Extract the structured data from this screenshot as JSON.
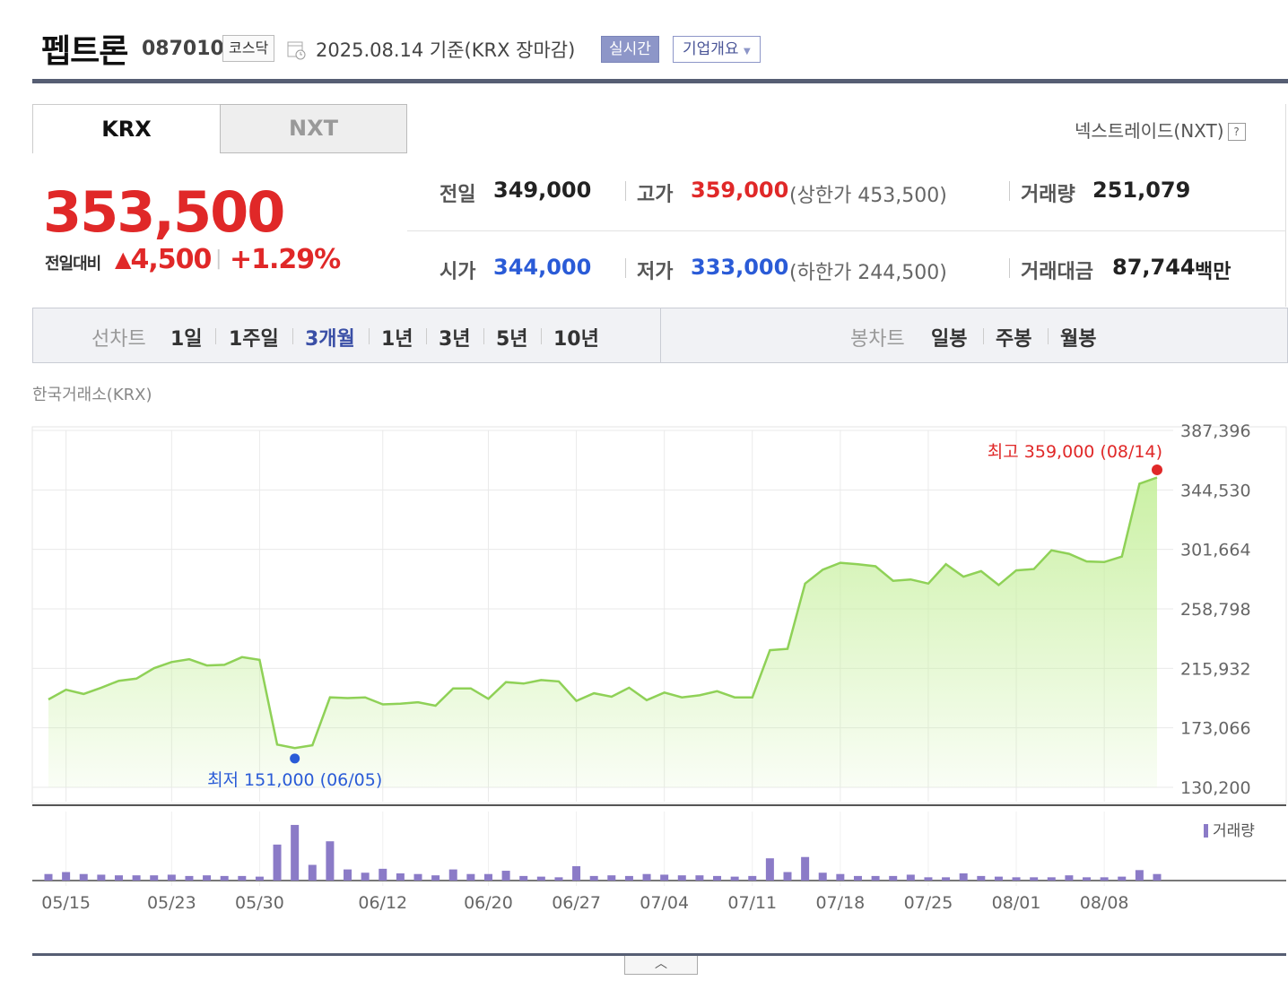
{
  "header": {
    "company_name": "펩트론",
    "stock_code": "087010",
    "market": "코스닥",
    "base_date": "2025.08.14 기준(KRX 장마감)",
    "realtime_button": "실시간",
    "overview_button": "기업개요"
  },
  "tabs": [
    "KRX",
    "NXT"
  ],
  "nxt_help_label": "넥스트레이드(NXT)",
  "quote": {
    "price": "353,500",
    "change_label": "전일대비",
    "change_symbol": "▲",
    "change_value": "4,500",
    "change_percent": "+1.29%",
    "prev_close_label": "전일",
    "prev_close": "349,000",
    "high_label": "고가",
    "high": "359,000",
    "upper_limit": "(상한가 453,500)",
    "volume_label": "거래량",
    "volume": "251,079",
    "open_label": "시가",
    "open": "344,000",
    "low_label": "저가",
    "low": "333,000",
    "lower_limit": "(하한가 244,500)",
    "amount_label": "거래대금",
    "amount": "87,744",
    "amount_unit": "백만"
  },
  "periods": {
    "line_label": "선차트",
    "line_items": [
      "1일",
      "1주일",
      "3개월",
      "1년",
      "3년",
      "5년",
      "10년"
    ],
    "active": "3개월",
    "candle_label": "봉차트",
    "candle_items": [
      "일봉",
      "주봉",
      "월봉"
    ]
  },
  "chart_data": {
    "type": "area",
    "exchange_label": "한국거래소(KRX)",
    "ylim": [
      130200,
      387396
    ],
    "ytick_labels": [
      "387,396",
      "344,530",
      "301,664",
      "258,798",
      "215,932",
      "173,066",
      "130,200"
    ],
    "xtick_labels": [
      "05/15",
      "05/23",
      "05/30",
      "06/12",
      "06/20",
      "06/27",
      "07/04",
      "07/11",
      "07/18",
      "07/25",
      "08/01",
      "08/08"
    ],
    "xtick_index": [
      1,
      7,
      12,
      19,
      25,
      30,
      35,
      40,
      45,
      50,
      55,
      60
    ],
    "grid": true,
    "fill_color": "#c8f0a0",
    "line_color": "#8fd157",
    "series": [
      {
        "values": [
          193500,
          200500,
          197500,
          202000,
          207000,
          208500,
          216000,
          220500,
          222500,
          218000,
          218500,
          224000,
          222000,
          161000,
          158500,
          160500,
          195000,
          194500,
          195000,
          190000,
          190500,
          191500,
          189000,
          201500,
          201500,
          194000,
          206000,
          205000,
          207500,
          206500,
          192500,
          198000,
          195500,
          202000,
          193000,
          198500,
          195000,
          196500,
          199500,
          195000,
          195000,
          229000,
          230000,
          277000,
          287000,
          292000,
          291000,
          289500,
          279000,
          280000,
          277000,
          291000,
          282000,
          286000,
          276000,
          286500,
          287500,
          301000,
          298500,
          293000,
          292500,
          296500,
          349000,
          353500
        ]
      }
    ],
    "max_annotation": {
      "text": "최고 359,000 (08/14)",
      "value": 359000,
      "index": 63
    },
    "min_annotation": {
      "text": "최저 151,000 (06/05)",
      "value": 151000,
      "index": 14
    },
    "volume_label": "거래량",
    "volume_color": "#8b7bc7",
    "volume": [
      0.1,
      0.13,
      0.1,
      0.09,
      0.08,
      0.08,
      0.08,
      0.09,
      0.07,
      0.08,
      0.07,
      0.07,
      0.06,
      0.55,
      0.85,
      0.24,
      0.6,
      0.17,
      0.12,
      0.18,
      0.11,
      0.1,
      0.08,
      0.17,
      0.1,
      0.1,
      0.15,
      0.07,
      0.06,
      0.05,
      0.22,
      0.07,
      0.08,
      0.07,
      0.1,
      0.09,
      0.08,
      0.08,
      0.07,
      0.06,
      0.07,
      0.34,
      0.13,
      0.36,
      0.12,
      0.1,
      0.07,
      0.07,
      0.07,
      0.09,
      0.05,
      0.05,
      0.11,
      0.07,
      0.06,
      0.05,
      0.05,
      0.05,
      0.08,
      0.05,
      0.05,
      0.06,
      0.16,
      0.1
    ]
  },
  "legend_label": "거래량",
  "collapse_icon": "chevron-up-icon"
}
